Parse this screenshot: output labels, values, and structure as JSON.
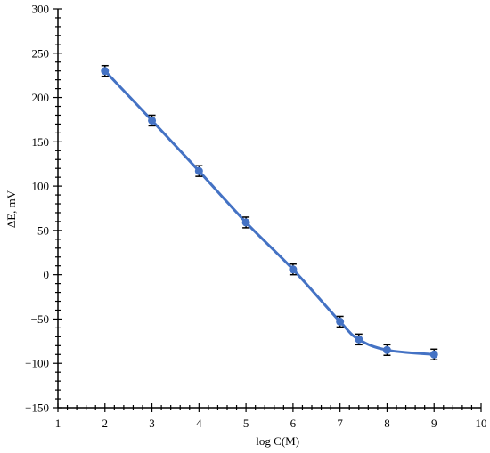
{
  "chart_data": {
    "type": "line",
    "title": "",
    "xlabel": "−log C(M)",
    "ylabel": "ΔE, mV",
    "xlim": [
      1,
      10
    ],
    "ylim": [
      -150,
      300
    ],
    "x_ticks": [
      1,
      2,
      3,
      4,
      5,
      6,
      7,
      8,
      9,
      10
    ],
    "y_ticks": [
      300,
      250,
      200,
      150,
      100,
      50,
      0,
      -50,
      -100,
      -150
    ],
    "grid": false,
    "legend": "none",
    "line_color": "#4472C4",
    "marker_color": "#4472C4",
    "error_bar_color": "#000000",
    "series": [
      {
        "x": [
          2,
          3,
          4,
          5,
          6,
          7,
          7.4,
          8,
          9
        ],
        "y": [
          230,
          174,
          117,
          59,
          6,
          -53,
          -73,
          -85,
          -90
        ],
        "error": [
          6,
          6,
          6,
          6,
          6,
          6,
          6,
          6,
          6
        ],
        "smooth": true
      }
    ]
  }
}
